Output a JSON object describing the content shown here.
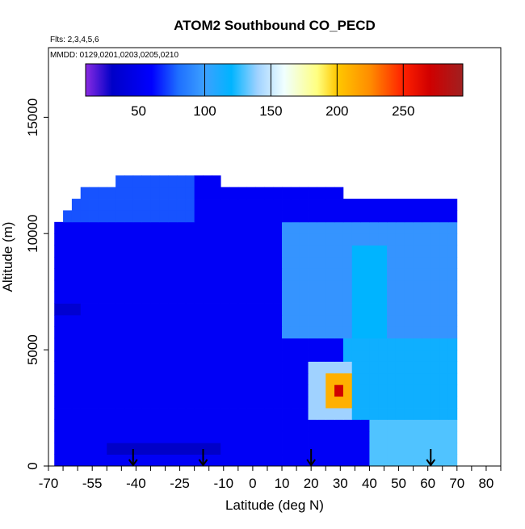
{
  "chart_data": {
    "type": "heatmap",
    "title": "ATOM2 Southbound CO_PECD",
    "subtitle_flights": "Flts: 2,3,4,5,6",
    "subtitle_dates": "MMDD: 0129,0201,0203,0205,0210",
    "xlabel": "Latitude (deg N)",
    "ylabel": "Altitude (m)",
    "xlim": [
      -70,
      85
    ],
    "ylim": [
      0,
      18000
    ],
    "x_ticks": [
      -70,
      -55,
      -40,
      -25,
      -10,
      0,
      10,
      20,
      30,
      40,
      50,
      60,
      70,
      80
    ],
    "y_ticks": [
      0,
      5000,
      10000,
      15000
    ],
    "x_tick_labels": [
      "-70",
      "-55",
      "-40",
      "-25",
      "-10",
      "0",
      "10",
      "20",
      "30",
      "40",
      "50",
      "60",
      "70",
      "80"
    ],
    "y_tick_labels": [
      "0",
      "5000",
      "10000",
      "15000"
    ],
    "colorbar": {
      "range": [
        10,
        295
      ],
      "ticks": [
        50,
        100,
        150,
        200,
        250
      ],
      "tick_labels": [
        "50",
        "100",
        "150",
        "200",
        "250"
      ],
      "gridlines": [
        100,
        150,
        200,
        250
      ],
      "stops": [
        {
          "v": 10,
          "c": "#8a2be2"
        },
        {
          "v": 30,
          "c": "#0000c8"
        },
        {
          "v": 60,
          "c": "#0000ff"
        },
        {
          "v": 80,
          "c": "#1e6fff"
        },
        {
          "v": 100,
          "c": "#3ca0ff"
        },
        {
          "v": 120,
          "c": "#00b4ff"
        },
        {
          "v": 140,
          "c": "#a0d2ff"
        },
        {
          "v": 160,
          "c": "#f0ffff"
        },
        {
          "v": 185,
          "c": "#ffff80"
        },
        {
          "v": 200,
          "c": "#ffc800"
        },
        {
          "v": 225,
          "c": "#ff8c00"
        },
        {
          "v": 250,
          "c": "#ff2000"
        },
        {
          "v": 270,
          "c": "#d00000"
        },
        {
          "v": 295,
          "c": "#a02020"
        }
      ]
    },
    "grid": false,
    "lat_bins": [
      -68,
      -65,
      -62,
      -59,
      -56,
      -53,
      -50,
      -47,
      -44,
      -41,
      -38,
      -35,
      -32,
      -29,
      -26,
      -23,
      -20,
      -17,
      -14,
      -11,
      -8,
      -5,
      -2,
      1,
      4,
      7,
      10,
      13,
      16,
      19,
      22,
      25,
      28,
      31,
      34,
      37,
      40,
      43,
      46,
      49,
      52,
      55,
      58,
      61,
      64,
      67,
      70
    ],
    "alt_bins": [
      0,
      500,
      1000,
      1500,
      2000,
      2500,
      3000,
      3500,
      4000,
      4500,
      5000,
      5500,
      6000,
      6500,
      7000,
      7500,
      8000,
      8500,
      9000,
      9500,
      10000,
      10500,
      11000,
      11500,
      12000,
      12500
    ],
    "data_extent": [
      {
        "alt_min": 0,
        "alt_max": 10500,
        "lat_min": -68,
        "lat_max": 71
      },
      {
        "alt_min": 10500,
        "alt_max": 11000,
        "lat_min": -65,
        "lat_max": 70
      },
      {
        "alt_min": 11000,
        "alt_max": 11500,
        "lat_min": -62,
        "lat_max": 70
      },
      {
        "alt_min": 11500,
        "alt_max": 12000,
        "lat_min": -59,
        "lat_max": 30
      },
      {
        "alt_min": 12000,
        "alt_max": 12500,
        "lat_min": -47,
        "lat_max": -11
      }
    ],
    "background_value": 55,
    "features": [
      {
        "lat_min": 40,
        "lat_max": 72,
        "alt_min": 0,
        "alt_max": 2000,
        "value": 130
      },
      {
        "lat_min": 30,
        "lat_max": 72,
        "alt_min": 2000,
        "alt_max": 5500,
        "value": 115
      },
      {
        "lat_min": 20,
        "lat_max": 35,
        "alt_min": 2000,
        "alt_max": 4500,
        "value": 140
      },
      {
        "lat_min": 26,
        "lat_max": 33,
        "alt_min": 2500,
        "alt_max": 4000,
        "value": 210
      },
      {
        "lat_min": 28,
        "lat_max": 31,
        "alt_min": 3000,
        "alt_max": 3500,
        "value": 270
      },
      {
        "lat_min": 10,
        "lat_max": 72,
        "alt_min": 5500,
        "alt_max": 10500,
        "value": 95
      },
      {
        "lat_min": 35,
        "lat_max": 45,
        "alt_min": 5500,
        "alt_max": 9500,
        "value": 120
      },
      {
        "lat_min": -68,
        "lat_max": -20,
        "alt_min": 10500,
        "alt_max": 12500,
        "value": 75
      },
      {
        "lat_min": -50,
        "lat_max": -10,
        "alt_min": 500,
        "alt_max": 1000,
        "value": 30
      },
      {
        "lat_min": -68,
        "lat_max": -60,
        "alt_min": 6500,
        "alt_max": 7000,
        "value": 35
      }
    ],
    "flight_markers_lat": [
      -41,
      -17,
      20,
      61
    ]
  }
}
